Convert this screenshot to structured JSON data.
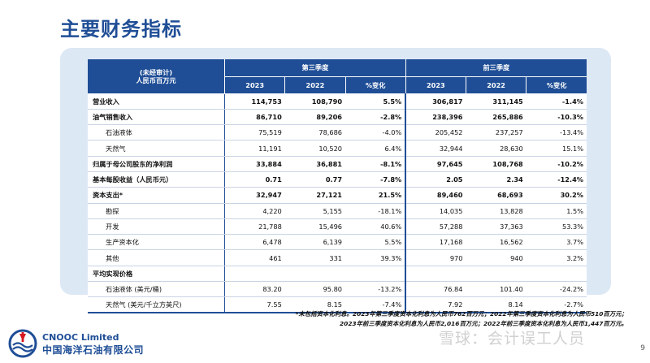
{
  "title": "主要财务指标",
  "table": {
    "header_lead": "(未经审计)",
    "header_unit": "人民币百万元",
    "group_q3": "第三季度",
    "group_ytd": "前三季度",
    "cols": [
      "2023",
      "2022",
      "%变化",
      "2023",
      "2022",
      "%变化"
    ],
    "rows": [
      {
        "label": "营业收入",
        "v": [
          "114,753",
          "108,790",
          "5.5%",
          "306,817",
          "311,145",
          "-1.4%"
        ]
      },
      {
        "label": "油气销售收入",
        "v": [
          "86,710",
          "89,206",
          "-2.8%",
          "238,396",
          "265,886",
          "-10.3%"
        ]
      },
      {
        "label": "石油液体",
        "v": [
          "75,519",
          "78,686",
          "-4.0%",
          "205,452",
          "237,257",
          "-13.4%"
        ]
      },
      {
        "label": "天然气",
        "v": [
          "11,191",
          "10,520",
          "6.4%",
          "32,944",
          "28,630",
          "15.1%"
        ]
      },
      {
        "label": "归属于母公司股东的净利润",
        "v": [
          "33,884",
          "36,881",
          "-8.1%",
          "97,645",
          "108,768",
          "-10.2%"
        ]
      },
      {
        "label": "基本每股收益（人民币元）",
        "v": [
          "0.71",
          "0.77",
          "-7.8%",
          "2.05",
          "2.34",
          "-12.4%"
        ]
      },
      {
        "label": "资本支出*",
        "v": [
          "32,947",
          "27,121",
          "21.5%",
          "89,460",
          "68,693",
          "30.2%"
        ]
      },
      {
        "label": "勘探",
        "v": [
          "4,220",
          "5,155",
          "-18.1%",
          "14,035",
          "13,828",
          "1.5%"
        ]
      },
      {
        "label": "开发",
        "v": [
          "21,788",
          "15,496",
          "40.6%",
          "57,288",
          "37,363",
          "53.3%"
        ]
      },
      {
        "label": "生产资本化",
        "v": [
          "6,478",
          "6,139",
          "5.5%",
          "17,168",
          "16,562",
          "3.7%"
        ]
      },
      {
        "label": "其他",
        "v": [
          "461",
          "331",
          "39.3%",
          "970",
          "940",
          "3.2%"
        ]
      },
      {
        "label": "平均实现价格",
        "v": [
          "",
          "",
          "",
          "",
          "",
          ""
        ]
      },
      {
        "label": "石油液体 (美元/桶)",
        "v": [
          "83.20",
          "95.80",
          "-13.2%",
          "76.84",
          "101.40",
          "-24.2%"
        ]
      },
      {
        "label": "天然气 (美元/千立方英尺)",
        "v": [
          "7.55",
          "8.15",
          "-7.4%",
          "7.92",
          "8.14",
          "-2.7%"
        ]
      }
    ]
  },
  "footnote": {
    "line1": "*未包括资本化利息。2023年第三季度资本化利息为人民币762百万元；2022年第三季度资本化利息为人民币510百万元；",
    "line2": "2023年前三季度资本化利息为人民币2,016百万元；2022年前三季度资本化利息为人民币1,447百万元。"
  },
  "brand": {
    "en": "CNOOC Limited",
    "cn": "中国海洋石油有限公司"
  },
  "watermark": "雪球：会计误工人员",
  "page_number": "9",
  "colors": {
    "primary": "#1f4e96",
    "panel": "#dde8f5",
    "logo_red": "#d7191f"
  }
}
